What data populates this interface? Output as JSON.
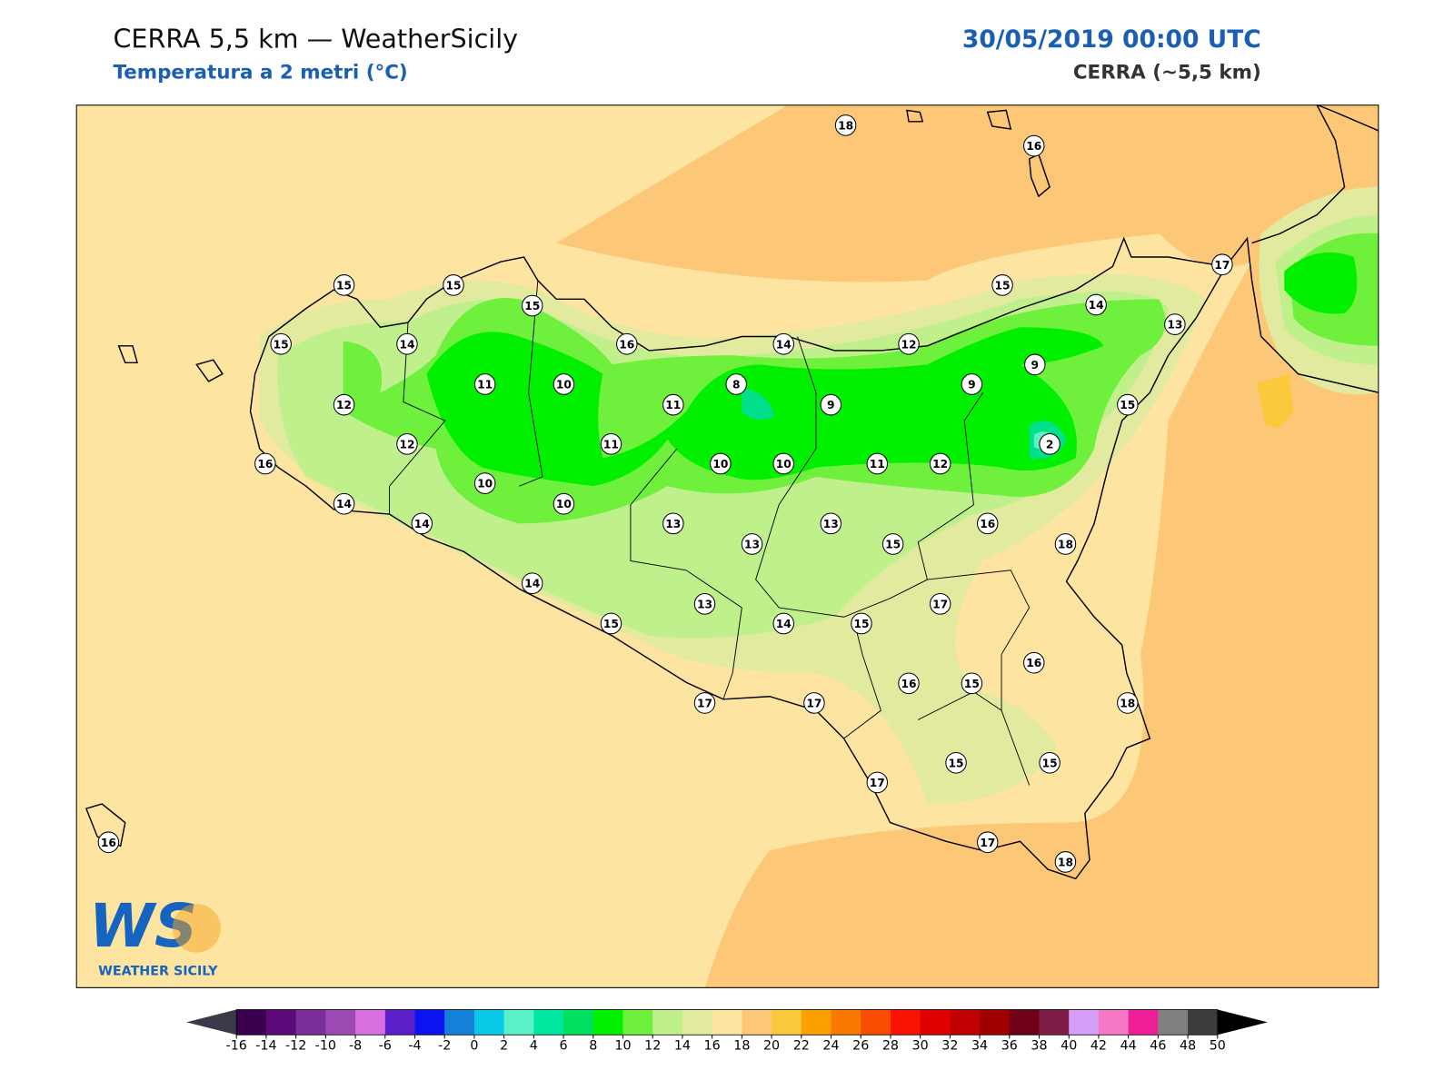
{
  "header": {
    "title": "CERRA 5,5 km — WeatherSicily",
    "subtitle": "Temperatura a 2 metri (°C)",
    "date": "30/05/2019 00:00 UTC",
    "model": "CERRA (~5,5 km)"
  },
  "logo": {
    "mark": "WS",
    "name": "WEATHER SICILY"
  },
  "stations": [
    18,
    16,
    15,
    15,
    15,
    17,
    15,
    14,
    13,
    15,
    14,
    16,
    14,
    12,
    9,
    11,
    10,
    8,
    9,
    12,
    11,
    9,
    15,
    12,
    11,
    2,
    16,
    10,
    10,
    11,
    12,
    10,
    14,
    10,
    14,
    13,
    13,
    16,
    13,
    15,
    18,
    14,
    17,
    13,
    15,
    14,
    15,
    16,
    16,
    15,
    17,
    17,
    18,
    17,
    15,
    15,
    16,
    17,
    18
  ],
  "colorbar": {
    "ticks": [
      -16,
      -14,
      -12,
      -10,
      -8,
      -6,
      -4,
      -2,
      0,
      2,
      4,
      6,
      8,
      10,
      12,
      14,
      16,
      18,
      20,
      22,
      24,
      26,
      28,
      30,
      32,
      34,
      36,
      38,
      40,
      42,
      44,
      46,
      48,
      50
    ],
    "colors": [
      "#3c0050",
      "#5c0a7a",
      "#7b2f9a",
      "#9c4bb4",
      "#d86fe0",
      "#5a1fc8",
      "#0a14f0",
      "#1480d8",
      "#0ac8e8",
      "#5af0c8",
      "#00e8a0",
      "#00e060",
      "#00f000",
      "#6ef03c",
      "#c0f08c",
      "#e2eaa0",
      "#fde4a0",
      "#fcc878",
      "#fcc83c",
      "#fca000",
      "#f87800",
      "#f84c00",
      "#f81400",
      "#e00000",
      "#c00000",
      "#a00000",
      "#6e0018",
      "#7e1e46",
      "#d69ef8",
      "#f878c8",
      "#f01e96",
      "#808080",
      "#3c3c3c"
    ],
    "under": "#3a3a4a",
    "over": "#000000"
  }
}
